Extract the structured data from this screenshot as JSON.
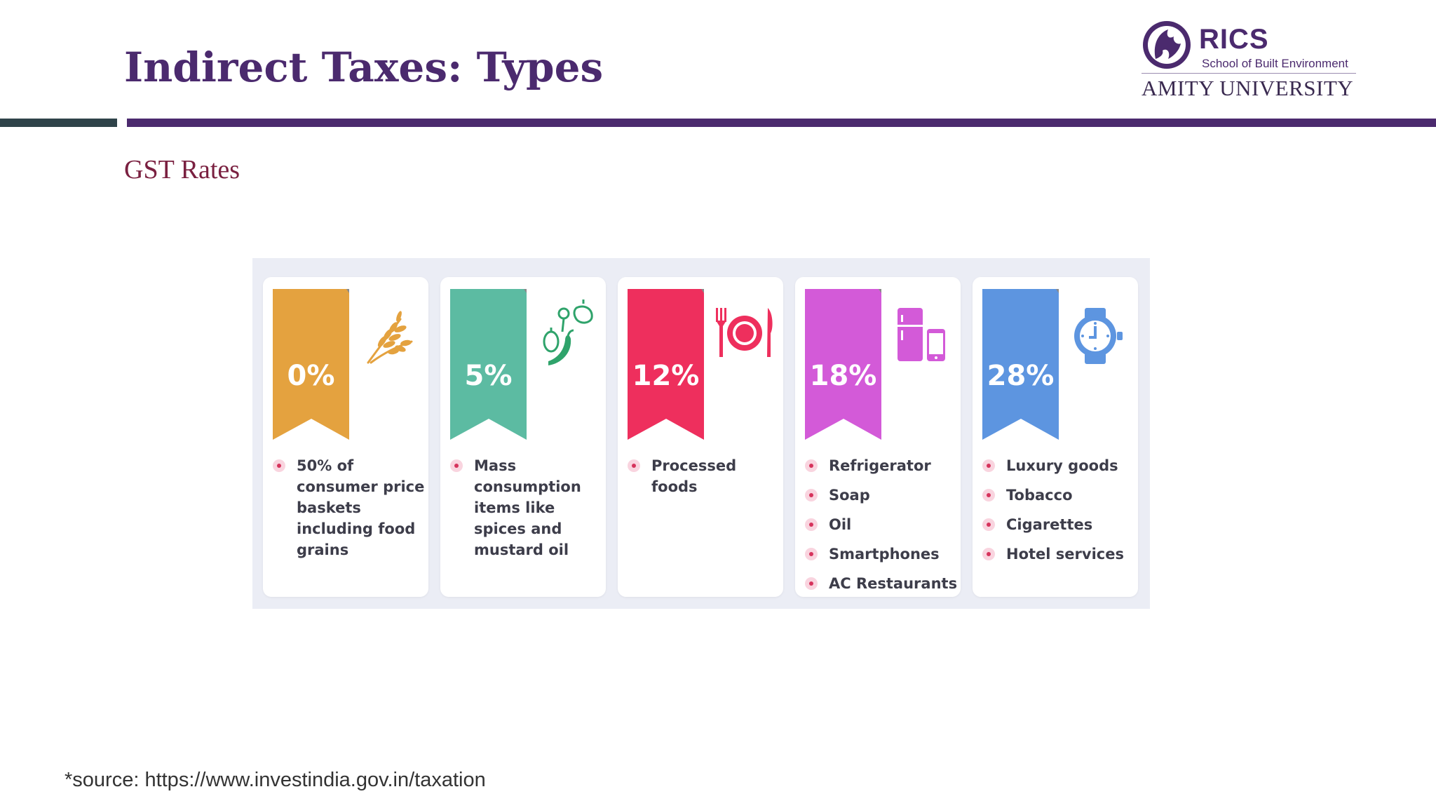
{
  "slide": {
    "title": "Indirect Taxes: Types",
    "subtitle": "GST Rates",
    "source": "*source: https://www.investindia.gov.in/taxation"
  },
  "logo": {
    "brand": "RICS",
    "school": "School of Built Environment",
    "university": "AMITY UNIVERSITY"
  },
  "colors": {
    "title": "#4b2a6e",
    "subtitle": "#7a2040",
    "bullet": "#d6335c"
  },
  "gst_rates": [
    {
      "rate": "0%",
      "color": "#e4a23f",
      "icon": "wheat-icon",
      "items": [
        "50% of consumer price baskets including food grains"
      ]
    },
    {
      "rate": "5%",
      "color": "#5cbba2",
      "icon": "spices-icon",
      "items": [
        "Mass consumption items like spices and mustard oil"
      ]
    },
    {
      "rate": "12%",
      "color": "#ee2f5d",
      "icon": "plate-cutlery-icon",
      "items": [
        "Processed foods"
      ]
    },
    {
      "rate": "18%",
      "color": "#d35ad8",
      "icon": "appliances-icon",
      "items": [
        "Refrigerator",
        "Soap",
        "Oil",
        "Smartphones",
        "AC Restaurants"
      ]
    },
    {
      "rate": "28%",
      "color": "#5d95e0",
      "icon": "watch-icon",
      "items": [
        "Luxury goods",
        "Tobacco",
        "Cigarettes",
        "Hotel services"
      ]
    }
  ]
}
